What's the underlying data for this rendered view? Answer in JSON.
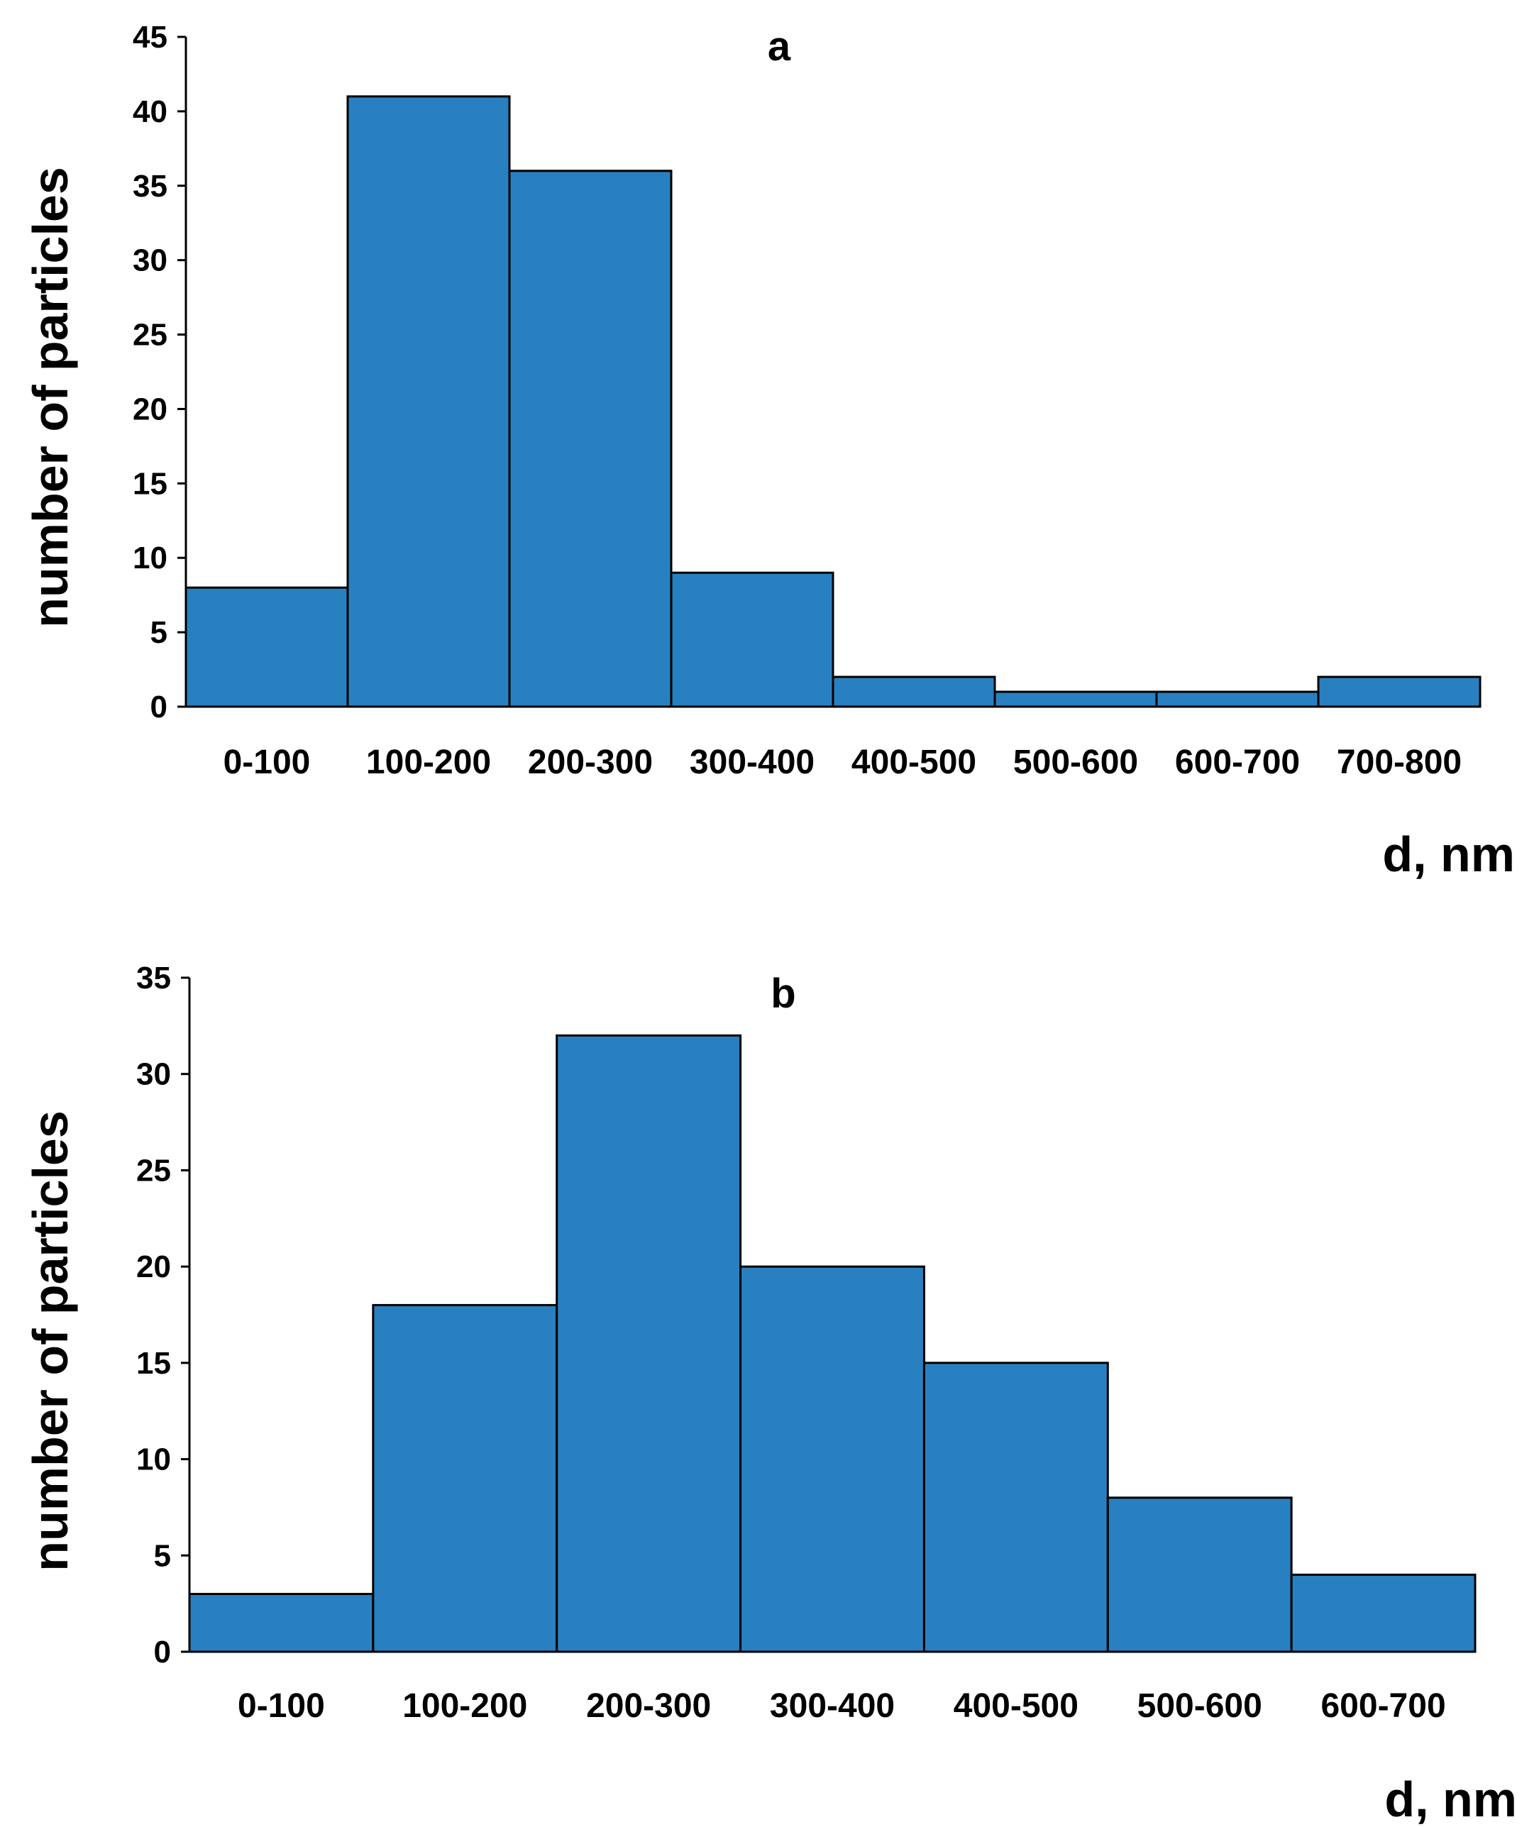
{
  "chart_data": [
    {
      "type": "bar",
      "panel": "a",
      "title": "a",
      "xlabel": "d, nm",
      "ylabel": "number of particles",
      "categories": [
        "0-100",
        "100-200",
        "200-300",
        "300-400",
        "400-500",
        "500-600",
        "600-700",
        "700-800"
      ],
      "values": [
        8,
        41,
        36,
        9,
        2,
        1,
        1,
        2
      ],
      "ylim": [
        0,
        45
      ],
      "yticks": [
        0,
        5,
        10,
        15,
        20,
        25,
        30,
        35,
        40,
        45
      ],
      "grid": false,
      "legend": "none",
      "bar_color": "#2980c0"
    },
    {
      "type": "bar",
      "panel": "b",
      "title": "b",
      "xlabel": "d, nm",
      "ylabel": "number of particles",
      "categories": [
        "0-100",
        "100-200",
        "200-300",
        "300-400",
        "400-500",
        "500-600",
        "600-700"
      ],
      "values": [
        3,
        18,
        32,
        20,
        15,
        8,
        4
      ],
      "ylim": [
        0,
        35
      ],
      "yticks": [
        0,
        5,
        10,
        15,
        20,
        25,
        30,
        35
      ],
      "grid": false,
      "legend": "none",
      "bar_color": "#2980c0"
    }
  ]
}
